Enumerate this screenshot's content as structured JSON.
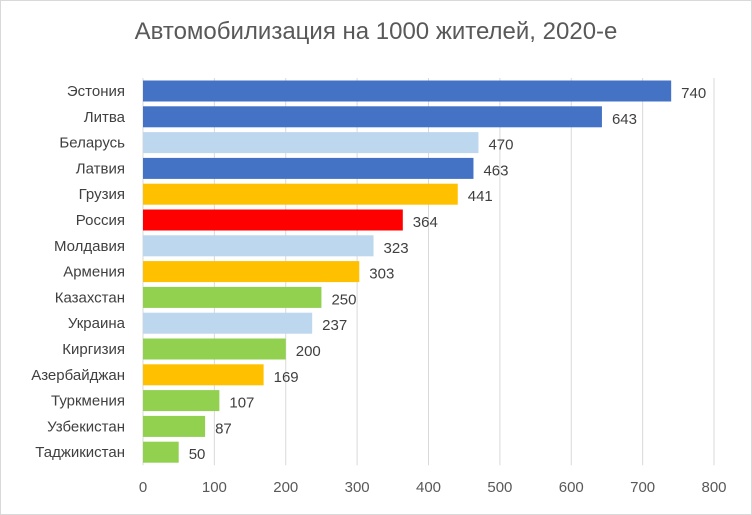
{
  "chart_data": {
    "type": "bar",
    "orientation": "horizontal",
    "title": "Автомобилизация на 1000 жителей, 2020-е",
    "categories": [
      "Эстония",
      "Литва",
      "Беларусь",
      "Латвия",
      "Грузия",
      "Россия",
      "Молдавия",
      "Армения",
      "Казахстан",
      "Украина",
      "Киргизия",
      "Азербайджан",
      "Туркмения",
      "Узбекистан",
      "Таджикистан"
    ],
    "values": [
      740,
      643,
      470,
      463,
      441,
      364,
      323,
      303,
      250,
      237,
      200,
      169,
      107,
      87,
      50
    ],
    "colors": [
      "#4472c4",
      "#4472c4",
      "#bdd7ee",
      "#4472c4",
      "#ffc000",
      "#ff0000",
      "#bdd7ee",
      "#ffc000",
      "#92d050",
      "#bdd7ee",
      "#92d050",
      "#ffc000",
      "#92d050",
      "#92d050",
      "#92d050"
    ],
    "xlim": [
      0,
      800
    ],
    "xticks": [
      0,
      100,
      200,
      300,
      400,
      500,
      600,
      700,
      800
    ],
    "grid": true,
    "gridlines_color": "#d9d9d9",
    "data_labels": true,
    "legend": "none",
    "xlabel": "",
    "ylabel": ""
  }
}
